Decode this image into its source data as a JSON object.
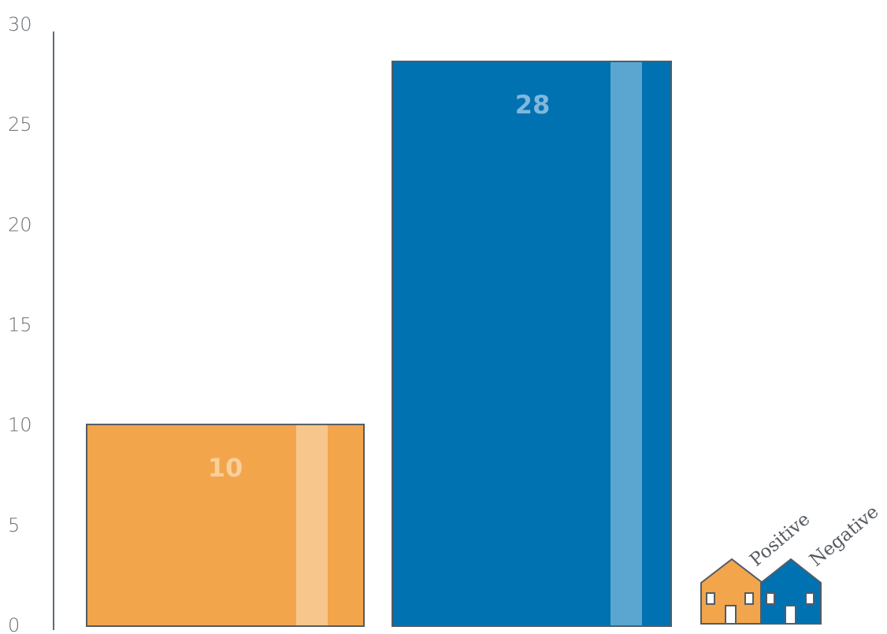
{
  "chart_data": {
    "type": "bar",
    "categories": [
      "Positive",
      "Negative"
    ],
    "values": [
      10,
      28
    ],
    "data_labels": [
      "10",
      "28"
    ],
    "ylim": [
      0,
      30
    ],
    "yticks": [
      0,
      5,
      10,
      15,
      20,
      25,
      30
    ],
    "ytick_labels": [
      "0",
      "5",
      "10",
      "15",
      "20",
      "25",
      "30"
    ],
    "grid": false,
    "legend_position": "bottom-right",
    "legend": [
      {
        "label": "Positive",
        "color": "#f2a54b"
      },
      {
        "label": "Negative",
        "color": "#0072b2"
      }
    ],
    "colors": {
      "positive": "#f2a54b",
      "positive_stripe": "#f6c68c",
      "negative": "#0072b2",
      "negative_stripe": "#5aa6d0",
      "axis": "#5f6b78",
      "outline": "#525c66"
    }
  }
}
